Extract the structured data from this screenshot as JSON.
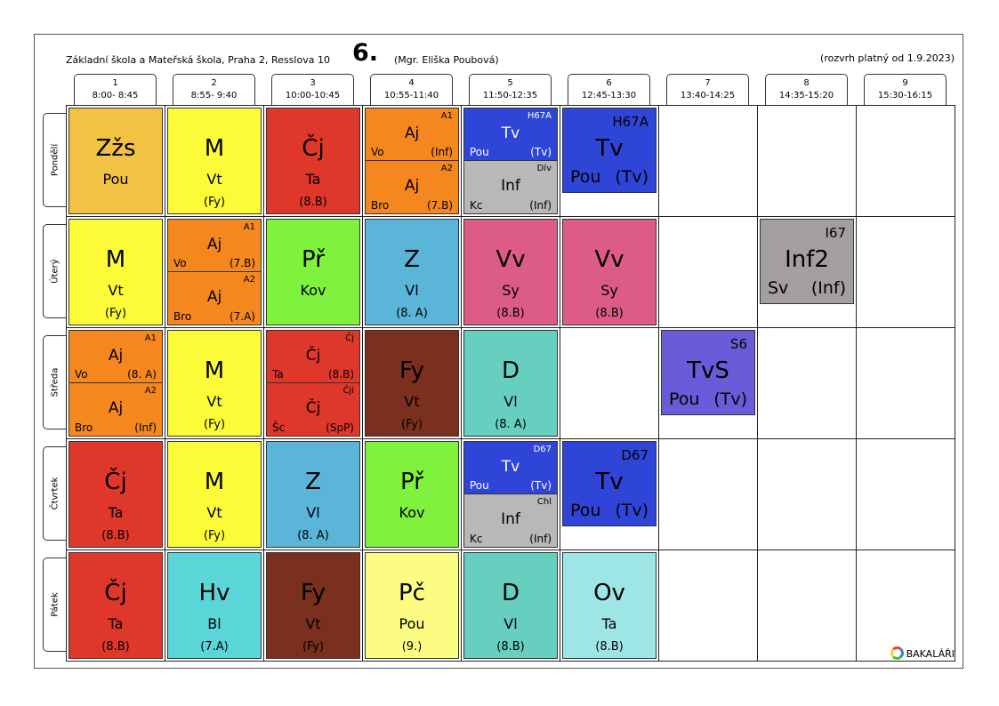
{
  "header": {
    "school": "Základní škola a Mateřská škola, Praha 2, Resslova 10",
    "class_name": "6.",
    "teacher": "(Mgr. Eliška Poubová)",
    "valid_from": "(rozvrh platný od 1.9.2023)"
  },
  "periods": [
    {
      "num": "1",
      "time": "8:00- 8:45"
    },
    {
      "num": "2",
      "time": "8:55- 9:40"
    },
    {
      "num": "3",
      "time": "10:00-10:45"
    },
    {
      "num": "4",
      "time": "10:55-11:40"
    },
    {
      "num": "5",
      "time": "11:50-12:35"
    },
    {
      "num": "6",
      "time": "12:45-13:30"
    },
    {
      "num": "7",
      "time": "13:40-14:25"
    },
    {
      "num": "8",
      "time": "14:35-15:20"
    },
    {
      "num": "9",
      "time": "15:30-16:15"
    }
  ],
  "days": [
    "Pondělí",
    "Úterý",
    "Středa",
    "Čtvrtek",
    "Pátek"
  ],
  "lessons": {
    "mon": [
      {
        "subject": "Zžs",
        "teacher": "Pou",
        "room": ""
      },
      {
        "subject": "M",
        "teacher": "Vt",
        "room": "(Fy)"
      },
      {
        "subject": "Čj",
        "teacher": "Ta",
        "room": "(8.B)"
      },
      {
        "top": {
          "group": "A1",
          "subject": "Aj",
          "teacher": "Vo",
          "room": "(Inf)"
        },
        "bottom": {
          "group": "A2",
          "subject": "Aj",
          "teacher": "Bro",
          "room": "(7.B)"
        }
      },
      {
        "top": {
          "group": "H67A",
          "subject": "Tv",
          "teacher": "Pou",
          "room": "(Tv)"
        },
        "bottom": {
          "group": "Dív",
          "subject": "Inf",
          "teacher": "Kc",
          "room": "(Inf)"
        }
      },
      {
        "group": "H67A",
        "subject": "Tv",
        "teacher": "Pou",
        "room": "(Tv)"
      }
    ],
    "tue": [
      {
        "subject": "M",
        "teacher": "Vt",
        "room": "(Fy)"
      },
      {
        "top": {
          "group": "A1",
          "subject": "Aj",
          "teacher": "Vo",
          "room": "(7.B)"
        },
        "bottom": {
          "group": "A2",
          "subject": "Aj",
          "teacher": "Bro",
          "room": "(7.A)"
        }
      },
      {
        "subject": "Př",
        "teacher": "Kov",
        "room": ""
      },
      {
        "subject": "Z",
        "teacher": "Vl",
        "room": "(8. A)"
      },
      {
        "subject": "Vv",
        "teacher": "Sy",
        "room": "(8.B)"
      },
      {
        "subject": "Vv",
        "teacher": "Sy",
        "room": "(8.B)"
      },
      {
        "group": "I67",
        "subject": "Inf2",
        "teacher": "Sv",
        "room": "(Inf)"
      }
    ],
    "wed": [
      {
        "top": {
          "group": "A1",
          "subject": "Aj",
          "teacher": "Vo",
          "room": "(8. A)"
        },
        "bottom": {
          "group": "A2",
          "subject": "Aj",
          "teacher": "Bro",
          "room": "(Inf)"
        }
      },
      {
        "subject": "M",
        "teacher": "Vt",
        "room": "(Fy)"
      },
      {
        "top": {
          "group": "Čj",
          "subject": "Čj",
          "teacher": "Ta",
          "room": "(8.B)"
        },
        "bottom": {
          "group": "Čji",
          "subject": "Čj",
          "teacher": "Šc",
          "room": "(SpP)"
        }
      },
      {
        "subject": "Fy",
        "teacher": "Vt",
        "room": "(Fy)"
      },
      {
        "subject": "D",
        "teacher": "Vl",
        "room": "(8. A)"
      },
      {
        "group": "S6",
        "subject": "TvS",
        "teacher": "Pou",
        "room": "(Tv)"
      }
    ],
    "thu": [
      {
        "subject": "Čj",
        "teacher": "Ta",
        "room": "(8.B)"
      },
      {
        "subject": "M",
        "teacher": "Vt",
        "room": "(Fy)"
      },
      {
        "subject": "Z",
        "teacher": "Vl",
        "room": "(8. A)"
      },
      {
        "subject": "Př",
        "teacher": "Kov",
        "room": ""
      },
      {
        "top": {
          "group": "D67",
          "subject": "Tv",
          "teacher": "Pou",
          "room": "(Tv)"
        },
        "bottom": {
          "group": "Chl",
          "subject": "Inf",
          "teacher": "Kc",
          "room": "(Inf)"
        }
      },
      {
        "group": "D67",
        "subject": "Tv",
        "teacher": "Pou",
        "room": "(Tv)"
      }
    ],
    "fri": [
      {
        "subject": "Čj",
        "teacher": "Ta",
        "room": "(8.B)"
      },
      {
        "subject": "Hv",
        "teacher": "Bl",
        "room": "(7.A)"
      },
      {
        "subject": "Fy",
        "teacher": "Vt",
        "room": "(Fy)"
      },
      {
        "subject": "Pč",
        "teacher": "Pou",
        "room": "(9.)"
      },
      {
        "subject": "D",
        "teacher": "Vl",
        "room": "(8.B)"
      },
      {
        "subject": "Ov",
        "teacher": "Ta",
        "room": "(8.B)"
      }
    ]
  },
  "colors": {
    "Zzs": "#f2c343",
    "M": "#fbfb38",
    "Cj": "#e0372b",
    "Aj": "#f5871f",
    "Tv": "#2f45d8",
    "Inf": "#b8b8b8",
    "Pr": "#7ef23c",
    "Z": "#5ab5d9",
    "Vv": "#dc5c86",
    "Inf2": "#a39fa1",
    "Fy": "#7a2f1f",
    "D": "#66cfc0",
    "TvS": "#6a5cd8",
    "Hv": "#5ad5d8",
    "Pc": "#fcfc82",
    "Ov": "#9ee6e6"
  },
  "logo": "BAKALÁŘI"
}
